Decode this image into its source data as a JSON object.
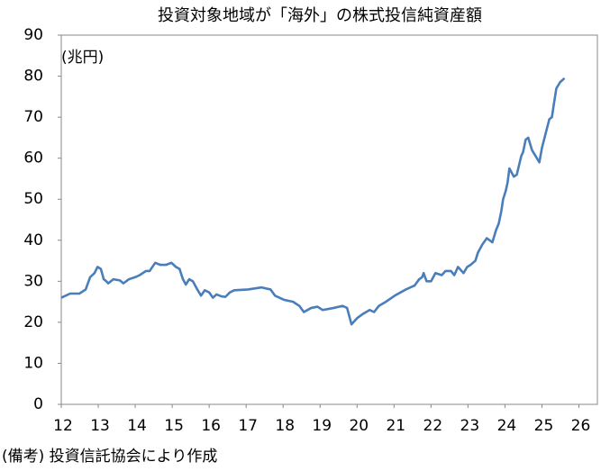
{
  "chart_data": {
    "type": "line",
    "title": "投資対象地域が「海外」の株式投信純資産額",
    "y_unit": "(兆円)",
    "source": "(備考) 投資信託協会により作成",
    "x": [
      12.0,
      12.24,
      12.49,
      12.66,
      12.78,
      12.9,
      12.98,
      13.07,
      13.15,
      13.22,
      13.27,
      13.41,
      13.59,
      13.68,
      13.83,
      14.0,
      14.12,
      14.29,
      14.39,
      14.54,
      14.68,
      14.83,
      14.98,
      15.1,
      15.2,
      15.29,
      15.37,
      15.46,
      15.56,
      15.68,
      15.78,
      15.88,
      16.0,
      16.1,
      16.2,
      16.34,
      16.44,
      16.56,
      16.68,
      17.05,
      17.41,
      17.66,
      17.78,
      18.02,
      18.27,
      18.44,
      18.56,
      18.76,
      18.93,
      19.07,
      19.37,
      19.61,
      19.73,
      19.85,
      20.0,
      20.15,
      20.34,
      20.46,
      20.59,
      20.78,
      21.02,
      21.32,
      21.56,
      21.68,
      21.76,
      21.8,
      21.88,
      22.0,
      22.12,
      22.29,
      22.39,
      22.54,
      22.63,
      22.73,
      22.83,
      22.88,
      22.98,
      23.07,
      23.2,
      23.27,
      23.39,
      23.51,
      23.66,
      23.76,
      23.83,
      23.9,
      23.95,
      24.02,
      24.07,
      24.12,
      24.24,
      24.32,
      24.44,
      24.49,
      24.56,
      24.63,
      24.73,
      24.93,
      25.0,
      25.1,
      25.2,
      25.27,
      25.32,
      25.39,
      25.49,
      25.61
    ],
    "series": [
      {
        "name": "株式投信純資産額",
        "color": "#4a7ebb",
        "values": [
          26,
          27,
          27,
          28,
          31,
          32,
          33.5,
          33,
          30.5,
          30,
          29.5,
          30.5,
          30.2,
          29.5,
          30.5,
          31,
          31.5,
          32.5,
          32.5,
          34.5,
          34,
          34,
          34.5,
          33.5,
          33,
          30.5,
          29.2,
          30.5,
          30,
          28,
          26.5,
          27.8,
          27.3,
          26,
          26.8,
          26.3,
          26.2,
          27.3,
          27.8,
          28,
          28.5,
          28,
          26.5,
          25.5,
          25,
          24,
          22.5,
          23.5,
          23.8,
          23,
          23.5,
          24,
          23.5,
          19.5,
          21,
          22,
          23,
          22.5,
          24,
          25,
          26.5,
          28,
          29,
          30.5,
          31,
          32,
          30,
          30,
          32,
          31.5,
          32.5,
          32.5,
          31.5,
          33.5,
          32.5,
          32,
          33.5,
          34,
          35,
          37,
          39,
          40.5,
          39.5,
          42.5,
          44,
          47,
          50,
          52,
          54,
          57.5,
          55.5,
          56,
          60.5,
          61.5,
          64.5,
          65,
          62,
          59,
          62.5,
          66,
          69.5,
          70,
          73,
          77,
          78.5,
          79.5
        ]
      }
    ],
    "xlim": [
      12,
      26.5
    ],
    "xticks": [
      12,
      13,
      14,
      15,
      16,
      17,
      18,
      19,
      20,
      21,
      22,
      23,
      24,
      25,
      26
    ],
    "ylim": [
      0,
      90
    ],
    "yticks": [
      0,
      10,
      20,
      30,
      40,
      50,
      60,
      70,
      80,
      90
    ]
  }
}
